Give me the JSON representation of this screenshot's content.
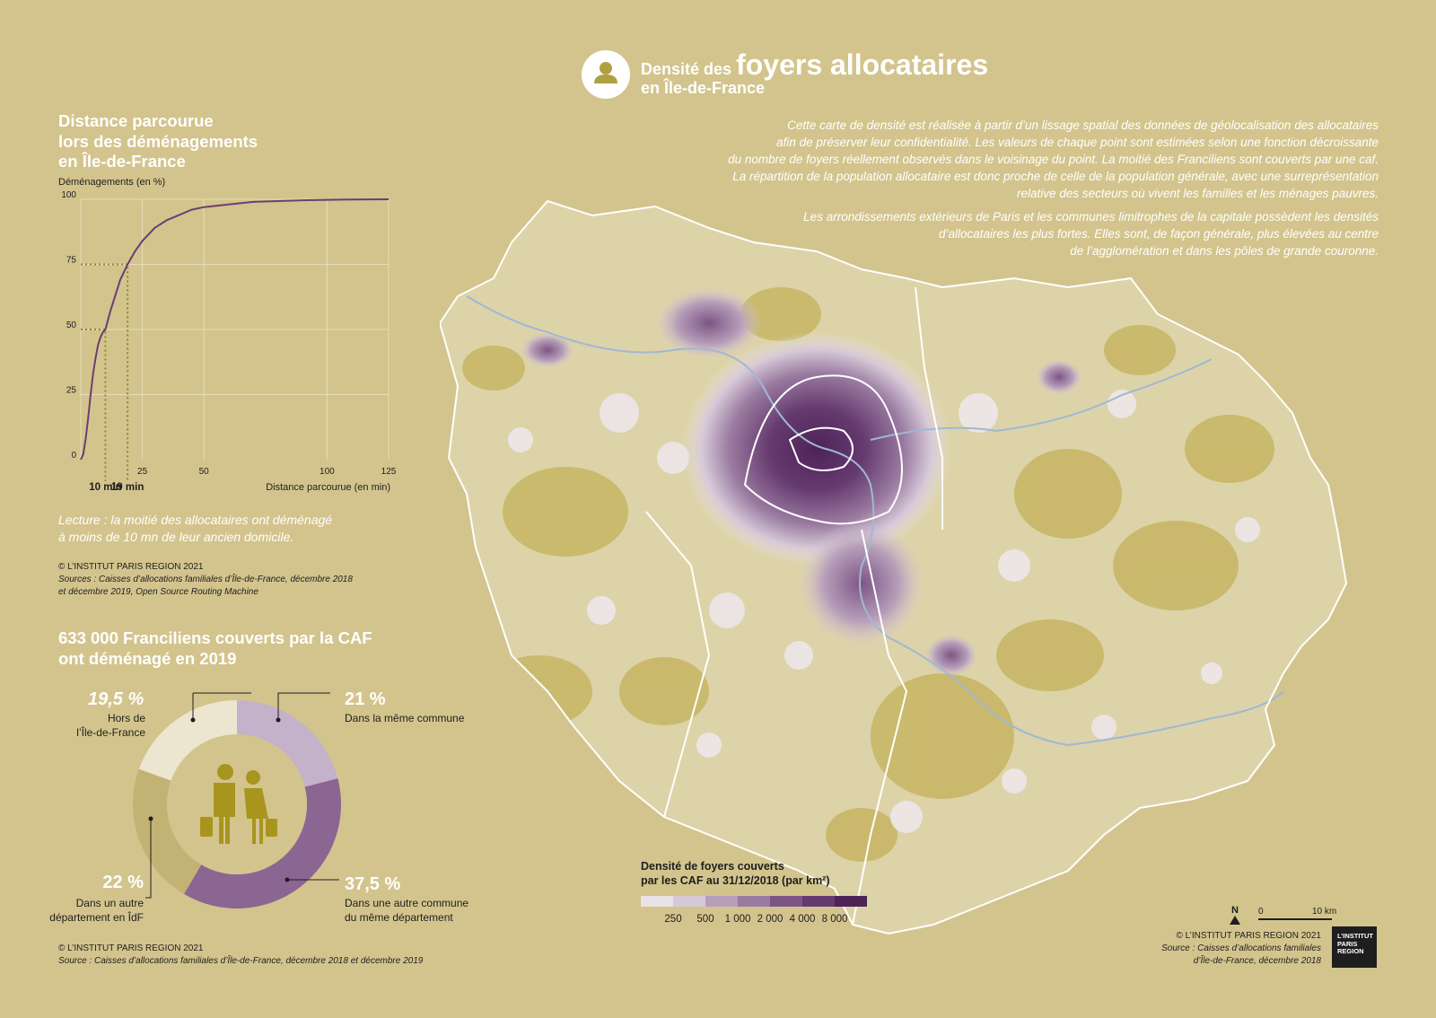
{
  "title": {
    "prefix": "Densité des",
    "highlight": "foyers allocataires",
    "line2": "en Île-de-France",
    "icon": "person-icon"
  },
  "intro": {
    "p1_lines": [
      "Cette carte de densité est réalisée à partir d’un lissage spatial des données de géolocalisation des allocataires",
      "afin de préserver leur confidentialité. Les valeurs de chaque point sont estimées selon une fonction décroissante",
      "du nombre de foyers réellement observés dans le voisinage du point. La moitié des Franciliens sont couverts par une caf.",
      "La répartition de la population allocataire est donc proche de celle de la population générale, avec une surreprésentation",
      "relative des secteurs où vivent les familles et les ménages pauvres."
    ],
    "p2_lines": [
      "Les arrondissements extérieurs de Paris et les communes limitrophes de la capitale possèdent les densités",
      "d’allocataires les plus fortes. Elles sont, de façon générale, plus élevées au centre",
      "de l’agglomération et dans les pôles de grande couronne."
    ]
  },
  "distance_chart": {
    "title_lines": [
      "Distance parcourue",
      "lors des déménagements",
      "en Île-de-France"
    ],
    "lecture_lines": [
      "Lecture : la moitié des allocataires ont déménagé",
      "à moins de 10 mn de leur ancien domicile."
    ],
    "copyright": "© L’INSTITUT PARIS REGION 2021",
    "source_lines": [
      "Sources : Caisses d’allocations familiales d’Île-de-France, décembre 2018",
      "et décembre 2019, Open Source Routing Machine"
    ]
  },
  "chart_data": {
    "type": "line",
    "ylabel": "Déménagements (en %)",
    "xlabel": "Distance parcourue (en min)",
    "xlim": [
      0,
      125
    ],
    "ylim": [
      0,
      100
    ],
    "x_ticks": [
      25,
      50,
      100,
      125
    ],
    "y_ticks": [
      0,
      25,
      50,
      75,
      100
    ],
    "x_extra_labels": [
      "10 min",
      "19 min"
    ],
    "grid": true,
    "line_color": "#6c3d73",
    "marker_color": "#8c8a22",
    "series": [
      {
        "x": [
          0,
          1,
          2,
          3,
          4,
          5,
          6,
          7,
          8,
          9,
          10,
          12,
          14,
          16,
          19,
          22,
          25,
          30,
          35,
          40,
          45,
          50,
          60,
          70,
          80,
          90,
          100,
          110,
          125
        ],
        "y": [
          0,
          2,
          8,
          16,
          25,
          33,
          39,
          44,
          47,
          49,
          50,
          57,
          63,
          69,
          75,
          80,
          84,
          89,
          92,
          94,
          96,
          97,
          98,
          99,
          99.3,
          99.6,
          99.8,
          99.9,
          100
        ]
      }
    ],
    "markers": [
      {
        "x": 10,
        "y": 50,
        "label": "10 min"
      },
      {
        "x": 19,
        "y": 75,
        "label": "19 min"
      }
    ]
  },
  "moves": {
    "title_lines": [
      "633 000 Franciliens couverts par la CAF",
      "ont déménagé en 2019"
    ],
    "icon": "family-with-suitcases-icon",
    "segments": [
      {
        "pct": "21 %",
        "value": 21,
        "label_lines": [
          "Dans la même commune"
        ],
        "color": "#c3b2c9"
      },
      {
        "pct": "37,5 %",
        "value": 37.5,
        "label_lines": [
          "Dans une autre commune",
          "du même département"
        ],
        "color": "#8b6693"
      },
      {
        "pct": "22 %",
        "value": 22,
        "label_lines": [
          "Dans un autre",
          "département en ÎdF"
        ],
        "color": "#c2b274"
      },
      {
        "pct": "19,5 %",
        "value": 19.5,
        "label_lines": [
          "Hors de",
          "l’Île-de-France"
        ],
        "color": "#ece5d0"
      }
    ],
    "copyright": "© L’INSTITUT PARIS REGION 2021",
    "source": "Source : Caisses d’allocations familiales d’Île-de-France, décembre 2018 et décembre 2019"
  },
  "map": {
    "legend_title_lines": [
      "Densité de foyers couverts",
      "par les CAF au 31/12/2018 (par km²)"
    ],
    "legend_colors": [
      "#e9e2e6",
      "#d6c8d8",
      "#b79fba",
      "#9a7ba0",
      "#7d5585",
      "#653a6f",
      "#4d2358"
    ],
    "legend_labels": [
      "250",
      "500",
      "1 000",
      "2 000",
      "4 000",
      "8 000"
    ],
    "north_label": "N",
    "scale_start": "0",
    "scale_end": "10 km",
    "copyright": "© L’INSTITUT PARIS REGION 2021",
    "source_lines": [
      "Source : Caisses d’allocations familiales",
      "d’Île-de-France, décembre 2018"
    ],
    "logo_lines": [
      "L’INSTITUT",
      "PARIS",
      "REGION"
    ]
  }
}
